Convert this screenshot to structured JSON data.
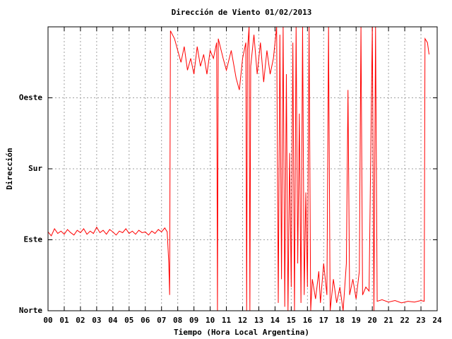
{
  "chart_data": {
    "type": "line",
    "title": "Dirección de Viento 01/02/2013",
    "x_label": "Tiempo (Hora Local Argentina)",
    "y_label": "Dirección",
    "color": "#ff0000",
    "grid": true,
    "xlim": [
      0,
      24
    ],
    "ylim": [
      0,
      360
    ],
    "xticks": [
      {
        "value": 0,
        "label": "00"
      },
      {
        "value": 1,
        "label": "01"
      },
      {
        "value": 2,
        "label": "02"
      },
      {
        "value": 3,
        "label": "03"
      },
      {
        "value": 4,
        "label": "04"
      },
      {
        "value": 5,
        "label": "05"
      },
      {
        "value": 6,
        "label": "06"
      },
      {
        "value": 7,
        "label": "07"
      },
      {
        "value": 8,
        "label": "08"
      },
      {
        "value": 9,
        "label": "09"
      },
      10,
      11,
      12,
      13,
      14,
      15,
      16,
      17,
      18,
      19,
      20,
      21,
      22,
      23,
      24
    ],
    "yticks": [
      {
        "value": 0,
        "label": "Norte"
      },
      {
        "value": 90,
        "label": "Este"
      },
      {
        "value": 180,
        "label": "Sur"
      },
      {
        "value": 270,
        "label": "Oeste"
      }
    ],
    "x": [
      0.0,
      0.2,
      0.4,
      0.6,
      0.8,
      1.0,
      1.2,
      1.4,
      1.6,
      1.8,
      2.0,
      2.2,
      2.4,
      2.6,
      2.8,
      3.0,
      3.2,
      3.4,
      3.6,
      3.8,
      4.0,
      4.2,
      4.4,
      4.6,
      4.8,
      5.0,
      5.2,
      5.4,
      5.6,
      5.8,
      6.0,
      6.2,
      6.4,
      6.6,
      6.8,
      7.0,
      7.2,
      7.35,
      7.45,
      7.5,
      7.55,
      7.8,
      8.0,
      8.2,
      8.4,
      8.6,
      8.8,
      9.0,
      9.2,
      9.4,
      9.6,
      9.8,
      10.0,
      10.2,
      10.4,
      10.45,
      10.5,
      10.8,
      11.0,
      11.3,
      11.6,
      11.8,
      12.0,
      12.2,
      12.25,
      12.3,
      12.4,
      12.45,
      12.5,
      12.7,
      12.9,
      13.1,
      13.3,
      13.5,
      13.7,
      13.9,
      14.1,
      14.2,
      14.3,
      14.4,
      14.5,
      14.6,
      14.7,
      14.8,
      14.9,
      15.0,
      15.1,
      15.2,
      15.3,
      15.4,
      15.5,
      15.6,
      15.7,
      15.8,
      15.9,
      16.0,
      16.1,
      16.2,
      16.3,
      16.5,
      16.7,
      16.8,
      17.0,
      17.2,
      17.3,
      17.4,
      17.6,
      17.8,
      18.0,
      18.2,
      18.4,
      18.5,
      18.6,
      18.8,
      19.0,
      19.2,
      19.3,
      19.4,
      19.6,
      19.8,
      20.0,
      20.1,
      20.2,
      20.3,
      20.6,
      21.0,
      21.4,
      21.8,
      22.2,
      22.6,
      23.0,
      23.2,
      23.25,
      23.4,
      23.5
    ],
    "values": [
      100,
      95,
      104,
      98,
      101,
      97,
      103,
      99,
      96,
      102,
      99,
      104,
      97,
      101,
      98,
      106,
      99,
      102,
      97,
      103,
      100,
      96,
      101,
      99,
      104,
      98,
      101,
      97,
      102,
      99,
      100,
      96,
      101,
      98,
      103,
      100,
      105,
      100,
      60,
      20,
      355,
      345,
      330,
      315,
      335,
      305,
      320,
      300,
      335,
      310,
      325,
      300,
      330,
      320,
      340,
      0,
      345,
      320,
      305,
      330,
      295,
      280,
      320,
      340,
      0,
      330,
      360,
      0,
      310,
      350,
      300,
      340,
      290,
      330,
      300,
      320,
      360,
      10,
      350,
      40,
      360,
      5,
      300,
      0,
      200,
      30,
      340,
      0,
      360,
      60,
      250,
      10,
      360,
      20,
      150,
      30,
      360,
      0,
      40,
      15,
      50,
      10,
      60,
      20,
      360,
      0,
      40,
      10,
      30,
      0,
      60,
      280,
      20,
      40,
      15,
      50,
      360,
      20,
      30,
      25,
      360,
      0,
      360,
      12,
      14,
      11,
      13,
      10,
      12,
      11,
      13,
      12,
      345,
      340,
      325
    ]
  }
}
